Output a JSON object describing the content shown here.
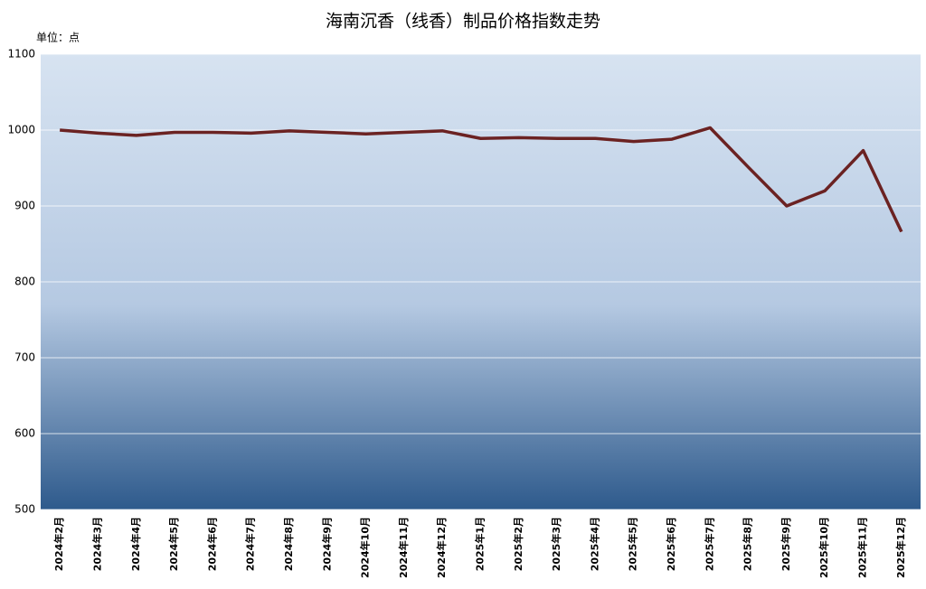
{
  "chart_data": {
    "type": "line",
    "title": "海南沉香（线香）制品价格指数走势",
    "y_label": "单位：点",
    "categories": [
      "2024年2月",
      "2024年3月",
      "2024年4月",
      "2024年5月",
      "2024年6月",
      "2024年7月",
      "2024年8月",
      "2024年9月",
      "2024年10月",
      "2024年11月",
      "2024年12月",
      "2025年1月",
      "2025年2月",
      "2025年3月",
      "2025年4月",
      "2025年5月",
      "2025年6月",
      "2025年7月",
      "2025年8月",
      "2025年9月",
      "2025年10月",
      "2025年11月",
      "2025年12月"
    ],
    "values": [
      1000,
      996,
      993,
      997,
      997,
      996,
      999,
      997,
      995,
      997,
      999,
      989,
      990,
      989,
      989,
      985,
      988,
      1003,
      951,
      900,
      920,
      973,
      866
    ],
    "color": "#6b2222",
    "ylim": [
      500,
      1100
    ],
    "yticks": [
      500,
      600,
      700,
      800,
      900,
      1000,
      1100
    ],
    "grid": true
  }
}
